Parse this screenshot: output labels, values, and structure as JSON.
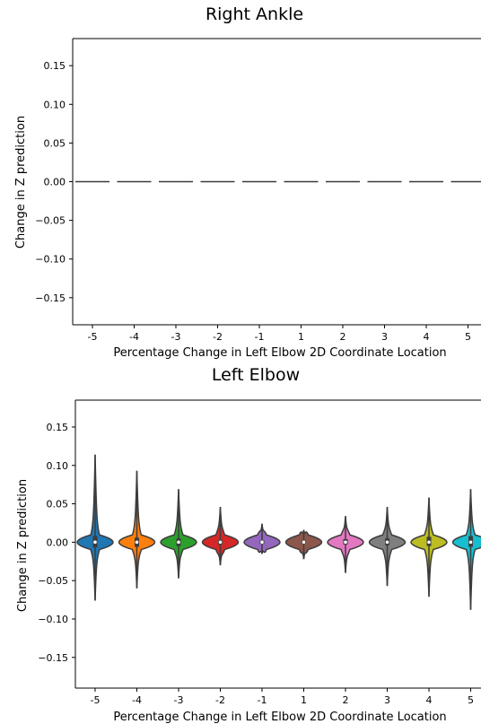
{
  "chart_data": [
    {
      "type": "violin",
      "title": "Right Ankle",
      "xlabel": "Percentage Change in Left Elbow 2D Coordinate Location",
      "ylabel": "Change in Z prediction",
      "categories": [
        "-5",
        "-4",
        "-3",
        "-2",
        "-1",
        "1",
        "2",
        "3",
        "4",
        "5"
      ],
      "ylim": [
        -0.185,
        0.185
      ],
      "yticks": [
        0.15,
        0.1,
        0.05,
        0.0,
        -0.05,
        -0.1,
        -0.15
      ],
      "ytick_labels": [
        "0.15",
        "0.10",
        "0.05",
        "0.00",
        "−0.05",
        "−0.10",
        "−0.15"
      ],
      "grid": false,
      "series": [
        {
          "category": "-5",
          "min": 0,
          "max": 0,
          "median": 0
        },
        {
          "category": "-4",
          "min": 0,
          "max": 0,
          "median": 0
        },
        {
          "category": "-3",
          "min": 0,
          "max": 0,
          "median": 0
        },
        {
          "category": "-2",
          "min": 0,
          "max": 0,
          "median": 0
        },
        {
          "category": "-1",
          "min": 0,
          "max": 0,
          "median": 0
        },
        {
          "category": "1",
          "min": 0,
          "max": 0,
          "median": 0
        },
        {
          "category": "2",
          "min": 0,
          "max": 0,
          "median": 0
        },
        {
          "category": "3",
          "min": 0,
          "max": 0,
          "median": 0
        },
        {
          "category": "4",
          "min": 0,
          "max": 0,
          "median": 0
        },
        {
          "category": "5",
          "min": 0,
          "max": 0,
          "median": 0
        }
      ]
    },
    {
      "type": "violin",
      "title": "Left Elbow",
      "xlabel": "Percentage Change in Left Elbow 2D Coordinate Location",
      "ylabel": "Change in Z prediction",
      "categories": [
        "-5",
        "-4",
        "-3",
        "-2",
        "-1",
        "1",
        "2",
        "3",
        "4",
        "5"
      ],
      "ylim": [
        -0.19,
        0.185
      ],
      "yticks": [
        0.15,
        0.1,
        0.05,
        0.0,
        -0.05,
        -0.1,
        -0.15
      ],
      "ytick_labels": [
        "0.15",
        "0.10",
        "0.05",
        "0.00",
        "−0.05",
        "−0.10",
        "−0.15"
      ],
      "grid": false,
      "series": [
        {
          "category": "-5",
          "color": "#1f77b4",
          "min": -0.076,
          "max": 0.114,
          "q1": -0.007,
          "q3": 0.008,
          "median": 0.0
        },
        {
          "category": "-4",
          "color": "#ff7f0e",
          "min": -0.06,
          "max": 0.093,
          "q1": -0.006,
          "q3": 0.006,
          "median": 0.0
        },
        {
          "category": "-3",
          "color": "#2ca02c",
          "min": -0.047,
          "max": 0.069,
          "q1": -0.005,
          "q3": 0.005,
          "median": 0.0
        },
        {
          "category": "-2",
          "color": "#d62728",
          "min": -0.03,
          "max": 0.046,
          "q1": -0.003,
          "q3": 0.003,
          "median": 0.0
        },
        {
          "category": "-1",
          "color": "#9467bd",
          "min": -0.015,
          "max": 0.024,
          "q1": -0.002,
          "q3": 0.002,
          "median": 0.0
        },
        {
          "category": "1",
          "color": "#8c564b",
          "min": -0.022,
          "max": 0.016,
          "q1": -0.002,
          "q3": 0.002,
          "median": 0.0
        },
        {
          "category": "2",
          "color": "#e377c2",
          "min": -0.04,
          "max": 0.034,
          "q1": -0.003,
          "q3": 0.004,
          "median": 0.0
        },
        {
          "category": "3",
          "color": "#7f7f7f",
          "min": -0.057,
          "max": 0.046,
          "q1": -0.004,
          "q3": 0.005,
          "median": 0.0
        },
        {
          "category": "4",
          "color": "#bcbd22",
          "min": -0.071,
          "max": 0.058,
          "q1": -0.005,
          "q3": 0.007,
          "median": 0.0
        },
        {
          "category": "5",
          "color": "#17becf",
          "min": -0.088,
          "max": 0.069,
          "q1": -0.006,
          "q3": 0.008,
          "median": 0.0
        }
      ]
    }
  ]
}
